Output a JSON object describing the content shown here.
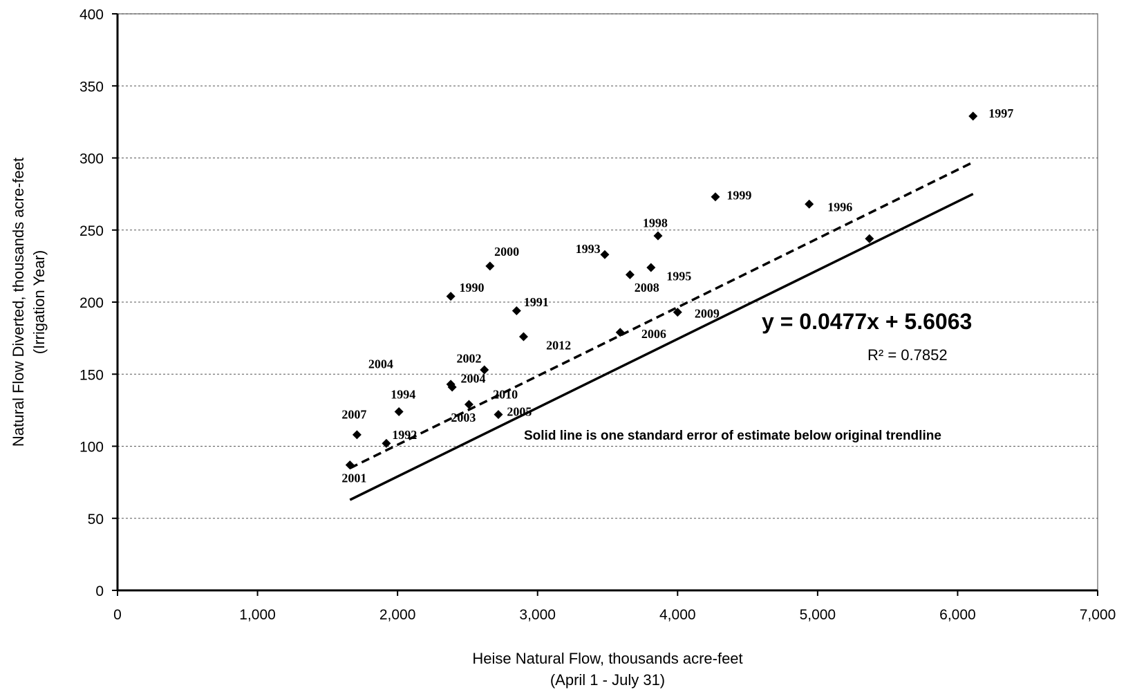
{
  "chart_data": {
    "type": "scatter",
    "xlabel": [
      "Heise Natural Flow, thousands acre-feet",
      "(April 1 - July 31)"
    ],
    "ylabel": [
      "Natural Flow Diverted, thousands acre-feet",
      "(Irrigation Year)"
    ],
    "xlim": [
      0,
      7000
    ],
    "ylim": [
      0,
      400
    ],
    "x_ticks": [
      0,
      1000,
      2000,
      3000,
      4000,
      5000,
      6000,
      7000
    ],
    "x_tick_labels": [
      "0",
      "1,000",
      "2,000",
      "3,000",
      "4,000",
      "5,000",
      "6,000",
      "7,000"
    ],
    "y_ticks": [
      0,
      50,
      100,
      150,
      200,
      250,
      300,
      350,
      400
    ],
    "y_tick_labels": [
      "0",
      "50",
      "100",
      "150",
      "200",
      "250",
      "300",
      "350",
      "400"
    ],
    "grid": "horizontal dashed",
    "marker_color": "#000000",
    "points": [
      {
        "x": 1660,
        "y": 87
      },
      {
        "x": 1710,
        "y": 108
      },
      {
        "x": 1920,
        "y": 102
      },
      {
        "x": 2010,
        "y": 124
      },
      {
        "x": 2380,
        "y": 204
      },
      {
        "x": 2380,
        "y": 143
      },
      {
        "x": 2390,
        "y": 141
      },
      {
        "x": 2510,
        "y": 129
      },
      {
        "x": 2620,
        "y": 153
      },
      {
        "x": 2660,
        "y": 225
      },
      {
        "x": 2720,
        "y": 122
      },
      {
        "x": 2850,
        "y": 194
      },
      {
        "x": 2900,
        "y": 176
      },
      {
        "x": 3480,
        "y": 233
      },
      {
        "x": 3590,
        "y": 179
      },
      {
        "x": 3660,
        "y": 219
      },
      {
        "x": 3810,
        "y": 224
      },
      {
        "x": 3860,
        "y": 246
      },
      {
        "x": 4000,
        "y": 193
      },
      {
        "x": 4270,
        "y": 273
      },
      {
        "x": 4940,
        "y": 268
      },
      {
        "x": 5370,
        "y": 244
      },
      {
        "x": 6110,
        "y": 329
      }
    ],
    "point_labels": [
      {
        "text": "2001",
        "x": 1690,
        "y": 78
      },
      {
        "text": "2007",
        "x": 1690,
        "y": 122
      },
      {
        "text": "1992",
        "x": 2050,
        "y": 108
      },
      {
        "text": "1994",
        "x": 2040,
        "y": 136
      },
      {
        "text": "2004",
        "x": 1880,
        "y": 157
      },
      {
        "text": "1990",
        "x": 2530,
        "y": 210
      },
      {
        "text": "2002",
        "x": 2510,
        "y": 161
      },
      {
        "text": "2004",
        "x": 2540,
        "y": 147
      },
      {
        "text": "2003",
        "x": 2470,
        "y": 120
      },
      {
        "text": "2010",
        "x": 2770,
        "y": 136
      },
      {
        "text": "2005",
        "x": 2870,
        "y": 124
      },
      {
        "text": "2000",
        "x": 2780,
        "y": 235
      },
      {
        "text": "1991",
        "x": 2990,
        "y": 200
      },
      {
        "text": "2012",
        "x": 3150,
        "y": 170
      },
      {
        "text": "1993",
        "x": 3360,
        "y": 237
      },
      {
        "text": "1998",
        "x": 3840,
        "y": 255
      },
      {
        "text": "1995",
        "x": 4010,
        "y": 218
      },
      {
        "text": "2008",
        "x": 3780,
        "y": 210
      },
      {
        "text": "2006",
        "x": 3830,
        "y": 178
      },
      {
        "text": "2009",
        "x": 4210,
        "y": 192
      },
      {
        "text": "1999",
        "x": 4440,
        "y": 274
      },
      {
        "text": "1996",
        "x": 5160,
        "y": 266
      },
      {
        "text": "1997",
        "x": 6310,
        "y": 331
      }
    ],
    "trendlines": [
      {
        "style": "dashed",
        "slope": 0.0477,
        "intercept": 5.6063,
        "x_range": [
          1660,
          6110
        ]
      },
      {
        "style": "solid",
        "slope": 0.0477,
        "intercept": -16.4,
        "x_range": [
          1660,
          6110
        ]
      }
    ],
    "annotations": {
      "equation": "y = 0.0477x + 5.6063",
      "r_squared": "R² = 0.7852",
      "note": "Solid line is one standard error of estimate below original trendline"
    }
  }
}
